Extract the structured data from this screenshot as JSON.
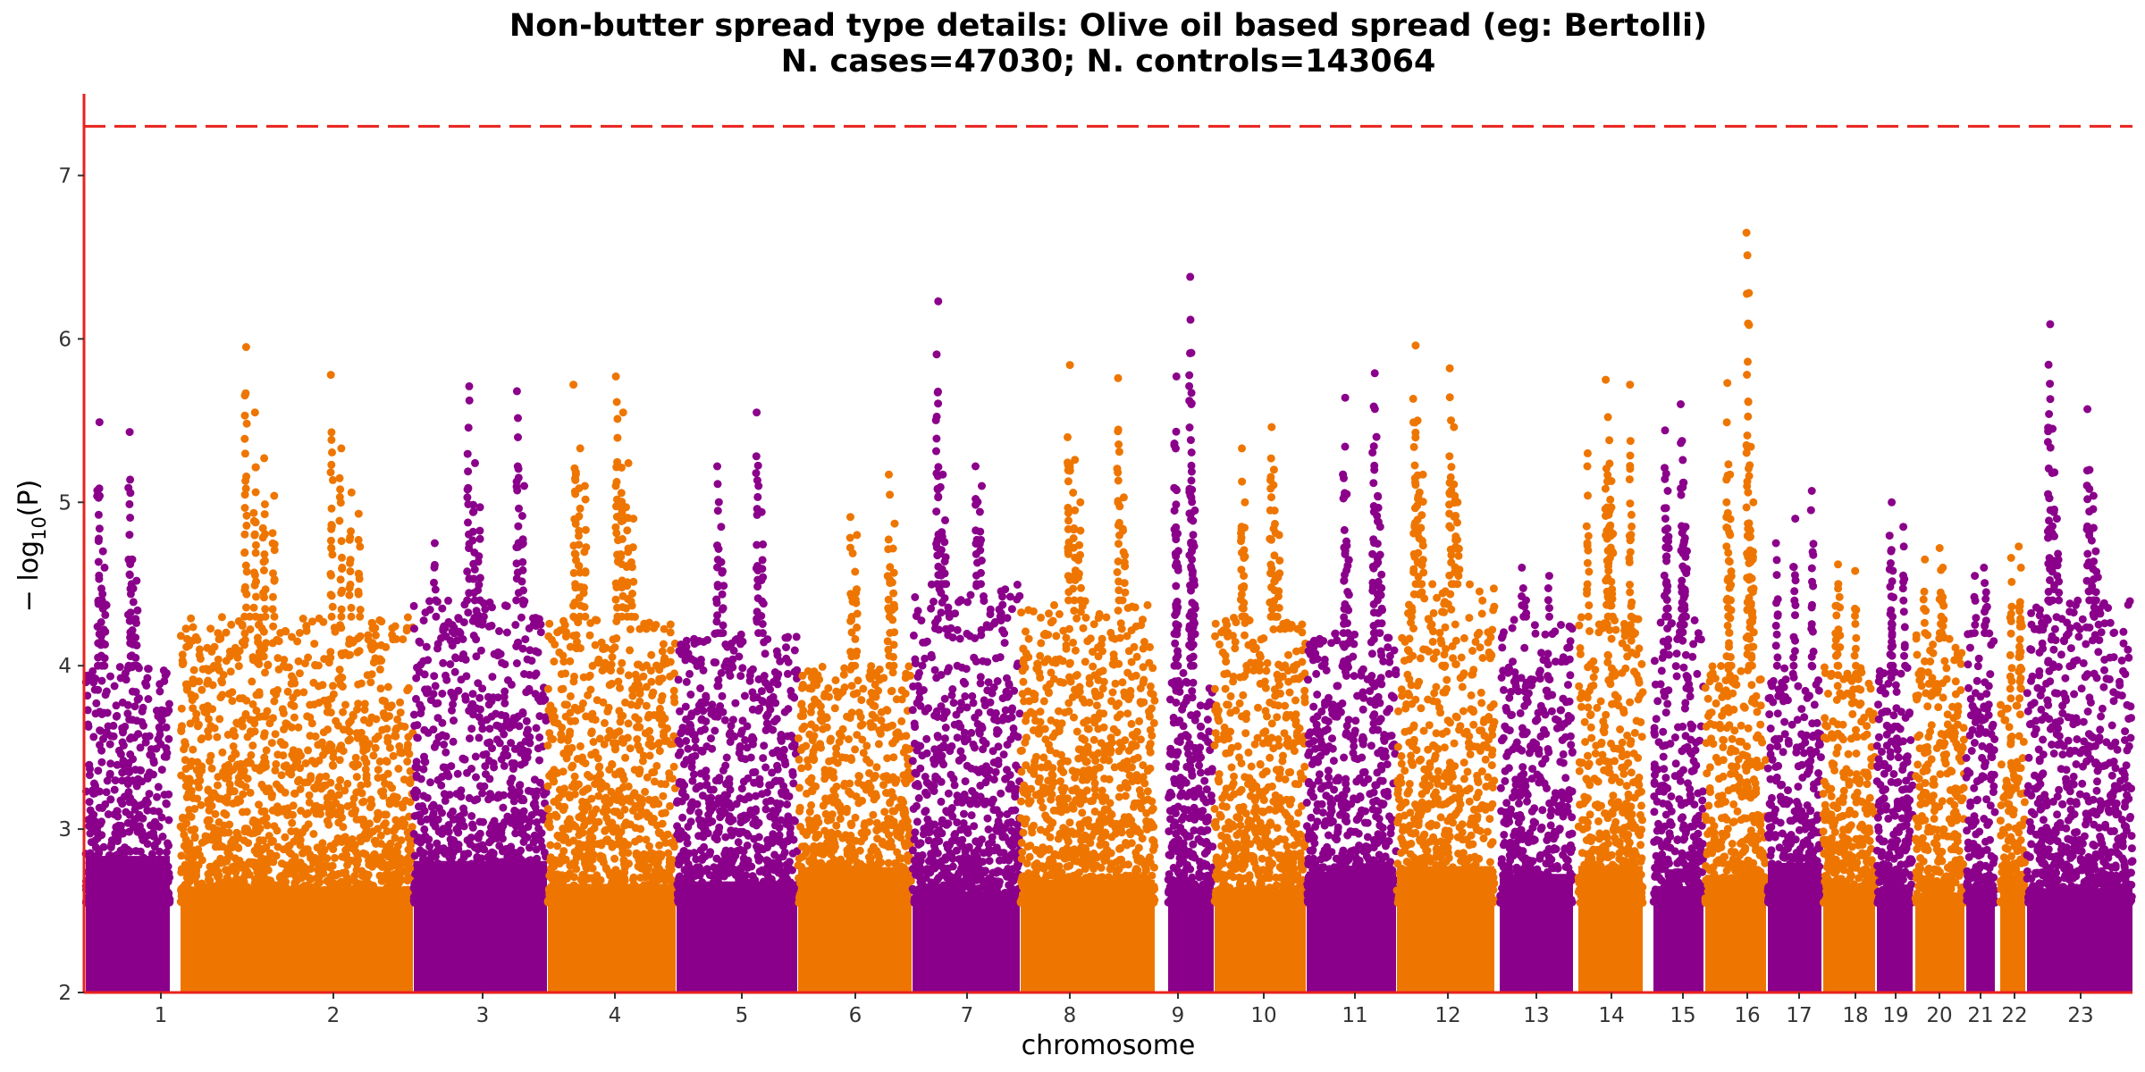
{
  "chart_data": {
    "type": "scatter",
    "subtype": "manhattan",
    "title": "Non-butter spread type details: Olive oil based spread (eg: Bertolli)",
    "subtitle": "N. cases=47030; N. controls=143064",
    "xlabel": "chromosome",
    "ylabel": "−log10(P)",
    "ylabel_parts": {
      "prefix": "− log",
      "subscript": "10",
      "suffix": "(P)"
    },
    "ylim": [
      2,
      7.5
    ],
    "yticks": [
      2,
      3,
      4,
      5,
      6,
      7
    ],
    "grid": false,
    "legend": "none",
    "significance_line": {
      "value": 7.30103,
      "color": "#e8221e",
      "style": "dashed"
    },
    "colors": {
      "odd": "#8b008b",
      "even": "#ee7600",
      "axis": "#e8221e"
    },
    "chromosomes": [
      {
        "label": "1",
        "color": "purple",
        "base_max": 4.0,
        "peaks": [
          5.49,
          5.43,
          4.7,
          4.65,
          4.6,
          4.52
        ]
      },
      {
        "label": "2",
        "color": "orange",
        "base_max": 4.3,
        "peaks": [
          5.95,
          5.78,
          5.55,
          5.33,
          5.27,
          5.06,
          5.04,
          4.93
        ]
      },
      {
        "label": "3",
        "color": "purple",
        "base_max": 4.4,
        "peaks": [
          5.71,
          5.68,
          5.24,
          5.1,
          4.97,
          4.75
        ]
      },
      {
        "label": "4",
        "color": "orange",
        "base_max": 4.3,
        "peaks": [
          5.77,
          5.72,
          5.55,
          5.33,
          5.24,
          5.1,
          4.9
        ]
      },
      {
        "label": "5",
        "color": "purple",
        "base_max": 4.2,
        "peaks": [
          5.55,
          5.22,
          4.94,
          4.85
        ]
      },
      {
        "label": "6",
        "color": "orange",
        "base_max": 4.0,
        "peaks": [
          5.17,
          4.91,
          4.87,
          4.8
        ]
      },
      {
        "label": "7",
        "color": "purple",
        "base_max": 4.5,
        "peaks": [
          6.23,
          5.22,
          5.17,
          5.1,
          4.89
        ]
      },
      {
        "label": "8",
        "color": "orange",
        "base_max": 4.4,
        "peaks": [
          5.84,
          5.76,
          5.26,
          5.03,
          5.0
        ]
      },
      {
        "label": "9",
        "color": "purple",
        "base_max": 4.0,
        "peaks": [
          6.38,
          5.77,
          5.6,
          5.08,
          4.95
        ]
      },
      {
        "label": "10",
        "color": "orange",
        "base_max": 4.3,
        "peaks": [
          5.46,
          5.33,
          5.2,
          5.0,
          4.8
        ]
      },
      {
        "label": "11",
        "color": "purple",
        "base_max": 4.2,
        "peaks": [
          5.79,
          5.64,
          5.4,
          5.05,
          4.85
        ]
      },
      {
        "label": "12",
        "color": "orange",
        "base_max": 4.5,
        "peaks": [
          5.96,
          5.82,
          5.5,
          5.46,
          5.17,
          5.0
        ]
      },
      {
        "label": "13",
        "color": "purple",
        "base_max": 4.3,
        "peaks": [
          4.6,
          4.55,
          4.4
        ]
      },
      {
        "label": "14",
        "color": "orange",
        "base_max": 4.3,
        "peaks": [
          5.75,
          5.72,
          5.38,
          5.3,
          5.13
        ]
      },
      {
        "label": "15",
        "color": "purple",
        "base_max": 4.3,
        "peaks": [
          5.6,
          5.44,
          5.12,
          5.07,
          4.85
        ]
      },
      {
        "label": "16",
        "color": "orange",
        "base_max": 4.0,
        "peaks": [
          6.65,
          5.73,
          5.34,
          5.17,
          5.0
        ]
      },
      {
        "label": "17",
        "color": "purple",
        "base_max": 4.0,
        "peaks": [
          5.07,
          4.9,
          4.75
        ]
      },
      {
        "label": "18",
        "color": "orange",
        "base_max": 4.0,
        "peaks": [
          4.62,
          4.58,
          4.5
        ]
      },
      {
        "label": "19",
        "color": "purple",
        "base_max": 4.0,
        "peaks": [
          5.0,
          4.85,
          4.7
        ]
      },
      {
        "label": "20",
        "color": "orange",
        "base_max": 4.2,
        "peaks": [
          4.72,
          4.65,
          4.6
        ]
      },
      {
        "label": "21",
        "color": "purple",
        "base_max": 4.2,
        "peaks": [
          4.6,
          4.55,
          4.45
        ]
      },
      {
        "label": "22",
        "color": "orange",
        "base_max": 3.8,
        "peaks": [
          4.73,
          4.66,
          4.6
        ]
      },
      {
        "label": "23",
        "color": "purple",
        "base_max": 4.4,
        "peaks": [
          6.09,
          5.57,
          5.45,
          5.04,
          4.9,
          4.7
        ]
      }
    ]
  }
}
